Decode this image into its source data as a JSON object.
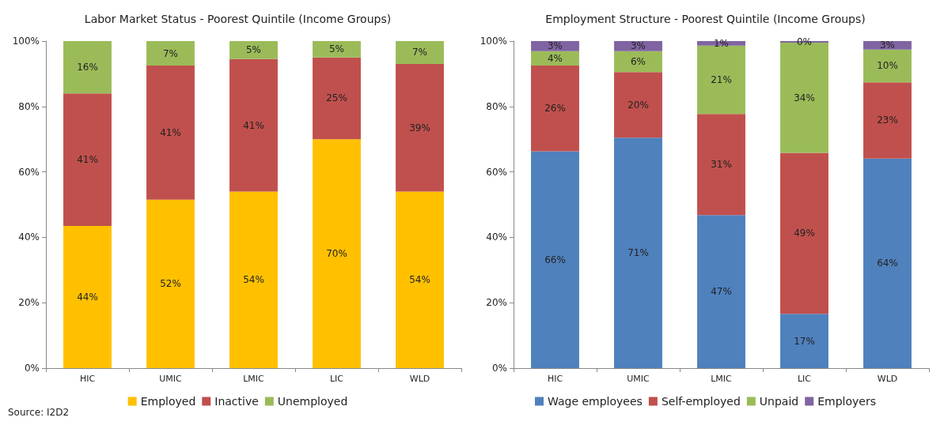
{
  "chart_data": [
    {
      "type": "bar",
      "title": "Labor Market Status - Poorest Quintile (Income Groups)",
      "categories": [
        "HIC",
        "UMIC",
        "LMIC",
        "LIC",
        "WLD"
      ],
      "stacked": true,
      "ylim": [
        0,
        100
      ],
      "yticks": [
        {
          "value": 0,
          "label": "0%"
        },
        {
          "value": 20,
          "label": "20%"
        },
        {
          "value": 40,
          "label": "40%"
        },
        {
          "value": 60,
          "label": "60%"
        },
        {
          "value": 80,
          "label": "80%"
        },
        {
          "value": 100,
          "label": "100%"
        }
      ],
      "grid": false,
      "legend": "bottom",
      "annotations": [
        "Source: I2D2"
      ],
      "series": [
        {
          "name": "Employed",
          "color": "#ffc000",
          "values": [
            43.5,
            51.5,
            54,
            70,
            54
          ],
          "value_labels": [
            "44%",
            "52%",
            "54%",
            "70%",
            "54%"
          ]
        },
        {
          "name": "Inactive",
          "color": "#c0504d",
          "values": [
            40.5,
            41,
            40.5,
            25,
            39
          ],
          "value_labels": [
            "41%",
            "41%",
            "41%",
            "25%",
            "39%"
          ]
        },
        {
          "name": "Unemployed",
          "color": "#9bbb59",
          "values": [
            16,
            7.5,
            5.5,
            5,
            7
          ],
          "value_labels": [
            "16%",
            "7%",
            "5%",
            "5%",
            "7%"
          ]
        }
      ]
    },
    {
      "type": "bar",
      "title": "Employment Structure - Poorest Quintile (Income Groups)",
      "categories": [
        "HIC",
        "UMIC",
        "LMIC",
        "LIC",
        "WLD"
      ],
      "stacked": true,
      "ylim": [
        0,
        100
      ],
      "yticks": [
        {
          "value": 0,
          "label": "0%"
        },
        {
          "value": 20,
          "label": "20%"
        },
        {
          "value": 40,
          "label": "40%"
        },
        {
          "value": 60,
          "label": "60%"
        },
        {
          "value": 80,
          "label": "80%"
        },
        {
          "value": 100,
          "label": "100%"
        }
      ],
      "grid": false,
      "legend": "bottom",
      "series": [
        {
          "name": "Wage employees",
          "color": "#4f81bd",
          "values": [
            66.3,
            70.5,
            46.8,
            16.6,
            64.1
          ],
          "value_labels": [
            "66%",
            "71%",
            "47%",
            "17%",
            "64%"
          ]
        },
        {
          "name": "Self-employed",
          "color": "#c0504d",
          "values": [
            26.2,
            20,
            30.9,
            49.2,
            23.3
          ],
          "value_labels": [
            "26%",
            "20%",
            "31%",
            "49%",
            "23%"
          ]
        },
        {
          "name": "Unpaid",
          "color": "#9bbb59",
          "values": [
            4.4,
            6.4,
            20.9,
            33.7,
            10
          ],
          "value_labels": [
            "4%",
            "6%",
            "21%",
            "34%",
            "10%"
          ]
        },
        {
          "name": "Employers",
          "color": "#8064a2",
          "values": [
            3.1,
            3.1,
            1.4,
            0.5,
            2.6
          ],
          "value_labels": [
            "3%",
            "3%",
            "1%",
            "0%",
            "3%"
          ]
        }
      ]
    }
  ]
}
